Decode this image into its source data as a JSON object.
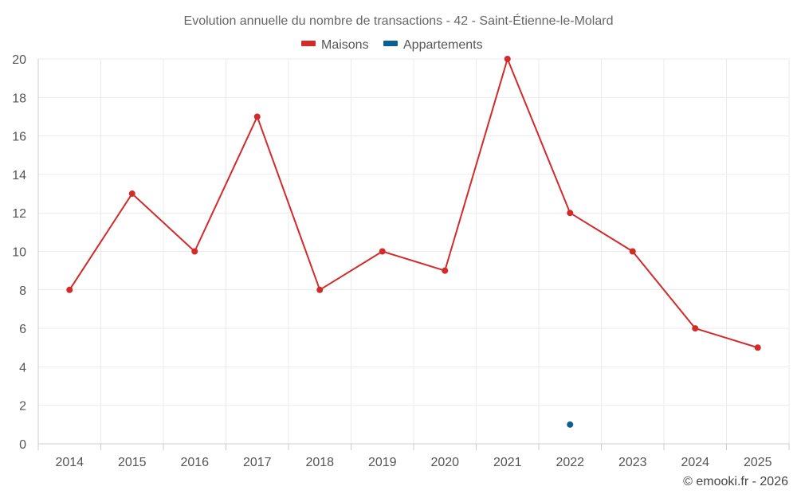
{
  "colors": {
    "maisons": "#d32a2a",
    "appartements": "#0b5f97"
  },
  "chart_data": {
    "type": "line",
    "title": "Evolution annuelle du nombre de transactions - 42 - Saint-Étienne-le-Molard",
    "categories": [
      "2014",
      "2015",
      "2016",
      "2017",
      "2018",
      "2019",
      "2020",
      "2021",
      "2022",
      "2023",
      "2024",
      "2025"
    ],
    "series": [
      {
        "name": "Maisons",
        "color": "#d32a2a",
        "values": [
          8,
          13,
          10,
          17,
          8,
          10,
          9,
          20,
          12,
          10,
          6,
          5
        ]
      },
      {
        "name": "Appartements",
        "color": "#0b5f97",
        "values": [
          null,
          null,
          null,
          null,
          null,
          null,
          null,
          null,
          1,
          null,
          null,
          null
        ]
      }
    ],
    "ylim": [
      0,
      20
    ],
    "yticks": [
      0,
      2,
      4,
      6,
      8,
      10,
      12,
      14,
      16,
      18,
      20
    ],
    "grid": true,
    "legend_position": "top-center",
    "xlabel": "",
    "ylabel": ""
  },
  "credit": "© emooki.fr - 2026"
}
